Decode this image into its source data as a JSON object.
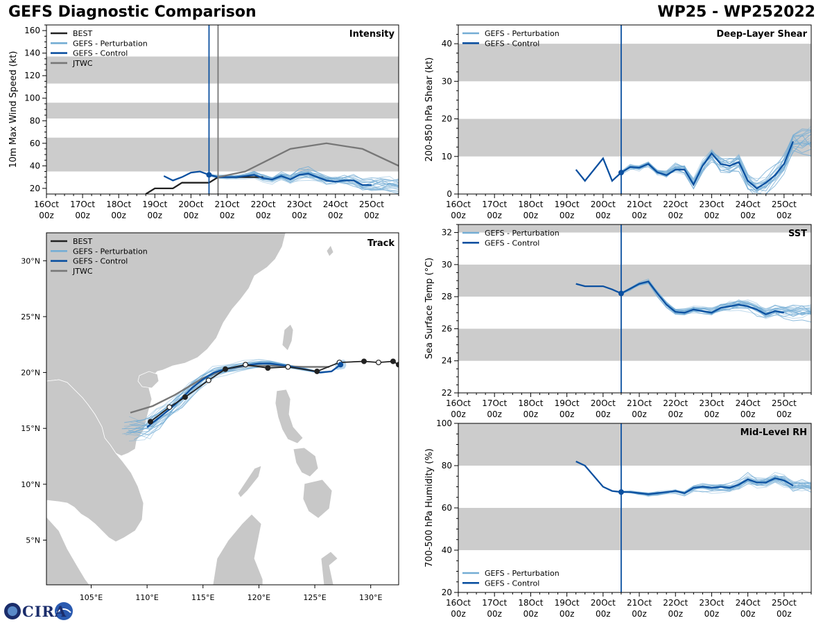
{
  "header": {
    "title": "GEFS Diagnostic Comparison",
    "storm_id": "WP25 - WP252022"
  },
  "logo": {
    "text": "CIRA"
  },
  "colors": {
    "best": "#222222",
    "perturbation": "#74add4",
    "control": "#0b50a0",
    "jtwc": "#777777",
    "band": "#cccccc",
    "land": "#c8c8c8"
  },
  "x_ticks": [
    "16Oct 00z",
    "17Oct 00z",
    "18Oct 00z",
    "19Oct 00z",
    "20Oct 00z",
    "21Oct 00z",
    "22Oct 00z",
    "23Oct 00z",
    "24Oct 00z",
    "25Oct 00z"
  ],
  "chart_data": [
    {
      "id": "intensity",
      "type": "line",
      "title": "Intensity",
      "ylabel": "10m Max Wind Speed (kt)",
      "xlim": [
        0,
        9.75
      ],
      "ylim": [
        15,
        165
      ],
      "yticks": [
        20,
        40,
        60,
        80,
        100,
        120,
        140,
        160
      ],
      "bands": [
        [
          35,
          65
        ],
        [
          82,
          96
        ],
        [
          113,
          137
        ]
      ],
      "current_x": 4.5,
      "secondary_x": 4.75,
      "legend": [
        "BEST",
        "GEFS - Perturbation",
        "GEFS - Control",
        "JTWC"
      ],
      "series": [
        {
          "name": "BEST",
          "x": [
            2.75,
            3,
            3.5,
            3.75,
            4.5,
            4.75,
            5,
            6
          ],
          "y": [
            15,
            20,
            20,
            25,
            25,
            30,
            30,
            30
          ]
        },
        {
          "name": "GEFS - Control",
          "x": [
            3.25,
            3.5,
            3.75,
            4,
            4.25,
            4.5,
            4.75,
            5,
            5.25,
            5.5,
            5.75,
            6,
            6.25,
            6.5,
            6.75,
            7,
            7.25,
            7.5,
            7.75,
            8,
            8.25,
            8.5,
            8.75,
            9
          ],
          "y": [
            31,
            27,
            30,
            34,
            35,
            32,
            30,
            30,
            30,
            31,
            32,
            29,
            28,
            31,
            28,
            32,
            33,
            30,
            27,
            26,
            27,
            27,
            23,
            23
          ]
        },
        {
          "name": "JTWC",
          "x": [
            4.75,
            5.5,
            6.75,
            7.75,
            8.75,
            9.75
          ],
          "y": [
            30,
            35,
            55,
            60,
            55,
            40
          ]
        }
      ],
      "perturbation_seed": 3,
      "perturbation_base": "GEFS - Control",
      "perturbation_spread": 7,
      "perturbation_extend": 9.75
    },
    {
      "id": "shear",
      "type": "line",
      "title": "Deep-Layer Shear",
      "ylabel": "200-850 hPa Shear (kt)",
      "xlim": [
        0,
        9.75
      ],
      "ylim": [
        0,
        45
      ],
      "yticks": [
        0,
        10,
        20,
        30,
        40
      ],
      "bands": [
        [
          10,
          20
        ],
        [
          30,
          40
        ]
      ],
      "current_x": 4.5,
      "legend": [
        "GEFS - Perturbation",
        "GEFS - Control"
      ],
      "series": [
        {
          "name": "GEFS - Control",
          "x": [
            3.25,
            3.5,
            4,
            4.25,
            4.5,
            4.75,
            5,
            5.25,
            5.5,
            5.75,
            6,
            6.25,
            6.5,
            6.75,
            7,
            7.25,
            7.5,
            7.75,
            8,
            8.25,
            8.5,
            8.75,
            9,
            9.25
          ],
          "y": [
            6.5,
            3.5,
            9.5,
            3.5,
            5.7,
            7.2,
            7.0,
            8.0,
            5.8,
            5.0,
            6.5,
            6.5,
            2.5,
            7.5,
            10.8,
            8.0,
            7.5,
            8.5,
            3.5,
            1.5,
            3.0,
            5.0,
            8.0,
            14.0
          ]
        }
      ],
      "perturbation_seed": 11,
      "perturbation_base": "GEFS - Control",
      "perturbation_spread": 4,
      "perturbation_extend": 9.75
    },
    {
      "id": "sst",
      "type": "line",
      "title": "SST",
      "ylabel": "Sea Surface Temp (°C)",
      "xlim": [
        0,
        9.75
      ],
      "ylim": [
        22,
        32.5
      ],
      "yticks": [
        22,
        24,
        26,
        28,
        30,
        32
      ],
      "bands": [
        [
          24,
          26
        ],
        [
          28,
          30
        ],
        [
          32,
          32.5
        ]
      ],
      "current_x": 4.5,
      "legend": [
        "GEFS - Perturbation",
        "GEFS - Control"
      ],
      "series": [
        {
          "name": "GEFS - Control",
          "x": [
            3.25,
            3.5,
            4,
            4.25,
            4.5,
            4.75,
            5,
            5.25,
            5.5,
            5.75,
            6,
            6.25,
            6.5,
            6.75,
            7,
            7.25,
            7.5,
            7.75,
            8,
            8.25,
            8.5,
            8.75,
            9
          ],
          "y": [
            28.8,
            28.65,
            28.65,
            28.45,
            28.2,
            28.5,
            28.8,
            28.95,
            28.2,
            27.5,
            27.05,
            27.0,
            27.2,
            27.1,
            27.0,
            27.3,
            27.4,
            27.5,
            27.4,
            27.2,
            26.9,
            27.1,
            27.0
          ]
        }
      ],
      "perturbation_seed": 21,
      "perturbation_base": "GEFS - Control",
      "perturbation_spread": 0.5,
      "perturbation_extend": 9.75
    },
    {
      "id": "rh",
      "type": "line",
      "title": "Mid-Level RH",
      "ylabel": "700-500 hPa Humidity (%)",
      "xlim": [
        0,
        9.75
      ],
      "ylim": [
        20,
        100
      ],
      "yticks": [
        20,
        40,
        60,
        80,
        100
      ],
      "bands": [
        [
          40,
          60
        ],
        [
          80,
          100
        ]
      ],
      "current_x": 4.5,
      "legend": [
        "GEFS - Perturbation",
        "GEFS - Control"
      ],
      "series": [
        {
          "name": "GEFS - Control",
          "x": [
            3.25,
            3.5,
            4,
            4.25,
            4.5,
            4.75,
            5,
            5.25,
            5.5,
            5.75,
            6,
            6.25,
            6.5,
            6.75,
            7,
            7.25,
            7.5,
            7.75,
            8,
            8.25,
            8.5,
            8.75,
            9,
            9.25
          ],
          "y": [
            82,
            80,
            70,
            68,
            67.5,
            67.5,
            67,
            66.5,
            67,
            67.5,
            68,
            67,
            69.5,
            70,
            69.5,
            70,
            69.5,
            71,
            73.5,
            72,
            72,
            74,
            73,
            70.5
          ]
        }
      ],
      "perturbation_seed": 31,
      "perturbation_base": "GEFS - Control",
      "perturbation_spread": 3,
      "perturbation_extend": 9.75
    },
    {
      "id": "track",
      "type": "line",
      "title": "Track",
      "xlim": [
        101,
        132.5
      ],
      "ylim": [
        1,
        32.5
      ],
      "xticks": [
        "105°E",
        "110°E",
        "115°E",
        "120°E",
        "125°E",
        "130°E"
      ],
      "xtick_values": [
        105,
        110,
        115,
        120,
        125,
        130
      ],
      "yticks": [
        "5°N",
        "10°N",
        "15°N",
        "20°N",
        "25°N",
        "30°N"
      ],
      "ytick_values": [
        5,
        10,
        15,
        20,
        25,
        30
      ],
      "legend": [
        "BEST",
        "GEFS - Perturbation",
        "GEFS - Control",
        "JTWC"
      ],
      "series": [
        {
          "name": "BEST",
          "lon": [
            132.5,
            132.0,
            130.7,
            129.4,
            127.2,
            125.2,
            122.6,
            120.8,
            118.8,
            117.0,
            115.5,
            113.4,
            112.0,
            110.3
          ],
          "lat": [
            20.7,
            21.0,
            20.9,
            21.0,
            20.9,
            20.1,
            20.5,
            20.4,
            20.7,
            20.3,
            19.3,
            17.8,
            16.9,
            15.6
          ],
          "filled": [
            true,
            true,
            false,
            true,
            false,
            true,
            false,
            true,
            false,
            true,
            false,
            true,
            false,
            true
          ]
        },
        {
          "name": "GEFS - Control",
          "lon": [
            127.3,
            126.5,
            125.5,
            124.0,
            122.5,
            121.0,
            120.0,
            118.5,
            117.0,
            116.0,
            115.0,
            114.0,
            113.0,
            112.0,
            111.0,
            110.0
          ],
          "lat": [
            20.7,
            20.1,
            20.0,
            20.3,
            20.6,
            20.8,
            20.8,
            20.6,
            20.3,
            20.0,
            19.4,
            18.6,
            17.6,
            16.7,
            15.9,
            15.1
          ]
        },
        {
          "name": "JTWC",
          "lon": [
            126.3,
            124.0,
            121.5,
            119.0,
            117.0,
            115.0,
            112.5,
            110.5,
            108.5
          ],
          "lat": [
            20.5,
            20.5,
            20.6,
            20.6,
            20.3,
            19.5,
            18.0,
            17.0,
            16.4
          ]
        }
      ],
      "perturbation_seed": 41
    }
  ]
}
